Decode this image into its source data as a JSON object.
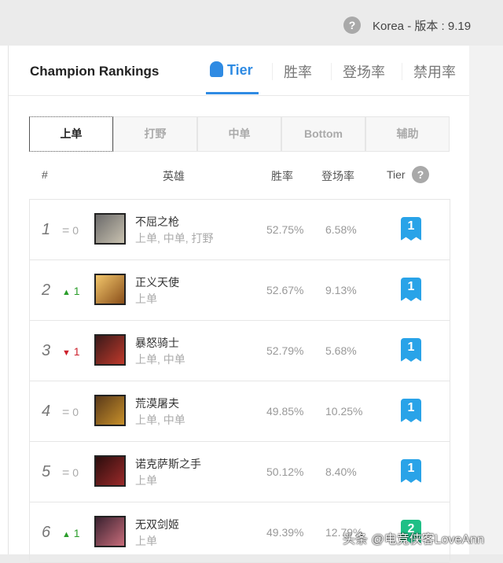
{
  "topbar": {
    "region": "Korea - 版本 : 9.19"
  },
  "header": {
    "title": "Champion Rankings",
    "tabs": [
      {
        "label": "Tier"
      },
      {
        "label": "胜率"
      },
      {
        "label": "登场率"
      },
      {
        "label": "禁用率"
      }
    ]
  },
  "positions": [
    "上单",
    "打野",
    "中单",
    "Bottom",
    "辅助"
  ],
  "columns": {
    "rank": "#",
    "hero": "英雄",
    "winrate": "胜率",
    "pickrate": "登场率",
    "tier": "Tier"
  },
  "colors": {
    "accent": "#2f8be3",
    "up": "#2a9d2a",
    "down": "#cc1f2b",
    "tier1": "#29a3e8",
    "tier2": "#1fbf86"
  },
  "rows": [
    {
      "rank": "1",
      "change": "0",
      "trend": "same",
      "name": "不屈之枪",
      "roles": "上单, 中单, 打野",
      "winrate": "52.75%",
      "pickrate": "6.58%",
      "tier": "1"
    },
    {
      "rank": "2",
      "change": "1",
      "trend": "up",
      "name": "正义天使",
      "roles": "上单",
      "winrate": "52.67%",
      "pickrate": "9.13%",
      "tier": "1"
    },
    {
      "rank": "3",
      "change": "1",
      "trend": "down",
      "name": "暴怒骑士",
      "roles": "上单, 中单",
      "winrate": "52.79%",
      "pickrate": "5.68%",
      "tier": "1"
    },
    {
      "rank": "4",
      "change": "0",
      "trend": "same",
      "name": "荒漠屠夫",
      "roles": "上单, 中单",
      "winrate": "49.85%",
      "pickrate": "10.25%",
      "tier": "1"
    },
    {
      "rank": "5",
      "change": "0",
      "trend": "same",
      "name": "诺克萨斯之手",
      "roles": "上单",
      "winrate": "50.12%",
      "pickrate": "8.40%",
      "tier": "1"
    },
    {
      "rank": "6",
      "change": "1",
      "trend": "up",
      "name": "无双剑姬",
      "roles": "上单",
      "winrate": "49.39%",
      "pickrate": "12.79%",
      "tier": "2"
    }
  ],
  "watermark": "头条 @电竞侠客LoveAnn"
}
